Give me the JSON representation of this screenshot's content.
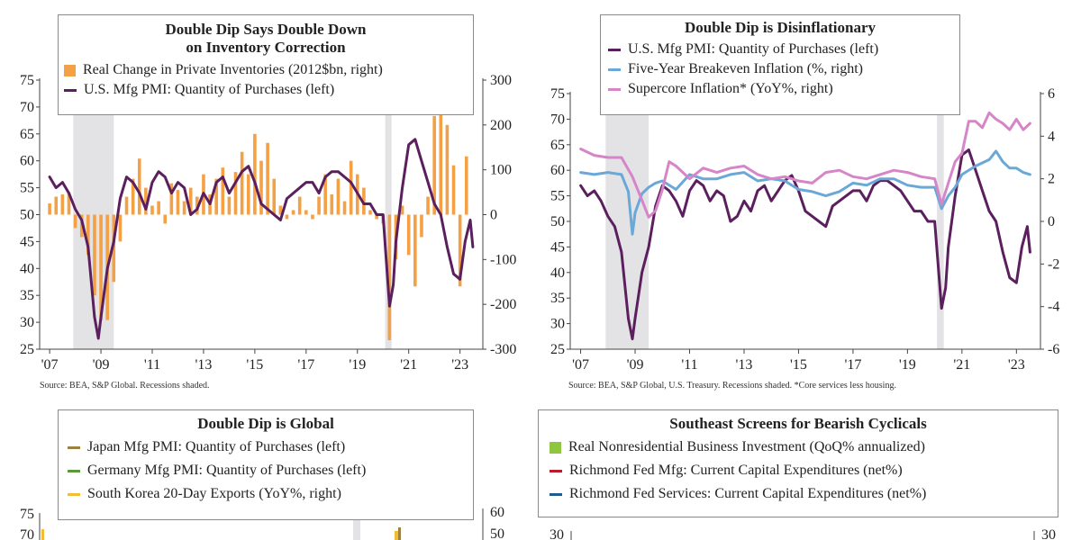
{
  "colors": {
    "purple": "#5b1f5e",
    "orange": "#f4a044",
    "blue": "#6aa8d8",
    "pink": "#d685c8",
    "tan": "#9c8240",
    "green_line": "#5a9a3a",
    "gold": "#f2bd34",
    "lime": "#8fc63f",
    "red": "#b51e2c",
    "navy": "#1f5b8e",
    "recession": "#e3e3e6",
    "axis": "#444444"
  },
  "chart_data": [
    {
      "id": "chart1",
      "type": "bar+line",
      "title_line1": "Double Dip Says Double Down",
      "title_line2": "on Inventory Correction",
      "source": "Source: BEA, S&P Global. Recessions shaded.",
      "x_ticks": [
        "'07",
        "'09",
        "'11",
        "'13",
        "'15",
        "'17",
        "'19",
        "'21",
        "'23"
      ],
      "x_tick_years": [
        2007,
        2009,
        2011,
        2013,
        2015,
        2017,
        2019,
        2021,
        2023
      ],
      "xlim": [
        2006.75,
        2023.75
      ],
      "recessions": [
        [
          2007.917,
          2009.5
        ],
        [
          2020.083,
          2020.333
        ]
      ],
      "left_axis": {
        "lim": [
          25,
          75
        ],
        "ticks": [
          25,
          30,
          35,
          40,
          45,
          50,
          55,
          60,
          65,
          70,
          75
        ]
      },
      "right_axis": {
        "lim": [
          -300,
          300
        ],
        "ticks": [
          -300,
          -200,
          -100,
          0,
          100,
          200,
          300
        ]
      },
      "series": [
        {
          "name": "Real Change in Private Inventories (2012$bn, right)",
          "kind": "bar",
          "axis": "right",
          "color_key": "orange",
          "x": [
            2007.0,
            2007.25,
            2007.5,
            2007.75,
            2008.0,
            2008.25,
            2008.5,
            2008.75,
            2009.0,
            2009.25,
            2009.5,
            2009.75,
            2010.0,
            2010.25,
            2010.5,
            2010.75,
            2011.0,
            2011.25,
            2011.5,
            2011.75,
            2012.0,
            2012.25,
            2012.5,
            2012.75,
            2013.0,
            2013.25,
            2013.5,
            2013.75,
            2014.0,
            2014.25,
            2014.5,
            2014.75,
            2015.0,
            2015.25,
            2015.5,
            2015.75,
            2016.0,
            2016.25,
            2016.5,
            2016.75,
            2017.0,
            2017.25,
            2017.5,
            2017.75,
            2018.0,
            2018.25,
            2018.5,
            2018.75,
            2019.0,
            2019.25,
            2019.5,
            2019.75,
            2020.0,
            2020.25,
            2020.5,
            2020.75,
            2021.0,
            2021.25,
            2021.5,
            2021.75,
            2022.0,
            2022.25,
            2022.5,
            2022.75,
            2023.0,
            2023.25
          ],
          "values": [
            25,
            40,
            45,
            50,
            -30,
            -50,
            -90,
            -180,
            -235,
            -235,
            -150,
            -60,
            40,
            80,
            125,
            60,
            20,
            30,
            -20,
            70,
            55,
            30,
            60,
            40,
            90,
            45,
            80,
            105,
            40,
            95,
            140,
            90,
            180,
            120,
            160,
            80,
            20,
            -10,
            10,
            40,
            10,
            -10,
            40,
            90,
            45,
            80,
            30,
            120,
            90,
            60,
            10,
            -10,
            -20,
            -280,
            -100,
            20,
            -90,
            -160,
            -50,
            40,
            220,
            240,
            200,
            110,
            -160,
            130
          ]
        },
        {
          "name": "U.S. Mfg PMI: Quantity of Purchases (left)",
          "kind": "line",
          "axis": "left",
          "color_key": "purple",
          "x": [
            2007.0,
            2007.25,
            2007.5,
            2007.75,
            2008.0,
            2008.25,
            2008.5,
            2008.75,
            2008.9,
            2009.0,
            2009.25,
            2009.5,
            2009.75,
            2010.0,
            2010.25,
            2010.5,
            2010.75,
            2011.0,
            2011.25,
            2011.5,
            2011.75,
            2012.0,
            2012.25,
            2012.5,
            2012.75,
            2013.0,
            2013.25,
            2013.5,
            2013.75,
            2014.0,
            2014.25,
            2014.5,
            2014.75,
            2015.0,
            2015.25,
            2015.5,
            2015.75,
            2016.0,
            2016.25,
            2016.5,
            2016.75,
            2017.0,
            2017.25,
            2017.5,
            2017.75,
            2018.0,
            2018.25,
            2018.5,
            2018.75,
            2019.0,
            2019.25,
            2019.5,
            2019.75,
            2020.0,
            2020.25,
            2020.4,
            2020.5,
            2020.75,
            2021.0,
            2021.25,
            2021.5,
            2021.75,
            2022.0,
            2022.25,
            2022.5,
            2022.75,
            2023.0,
            2023.2,
            2023.4,
            2023.5
          ],
          "values": [
            57,
            55,
            56,
            54,
            51,
            49,
            44,
            31,
            27,
            31,
            40,
            45,
            53,
            57,
            56,
            54,
            51,
            56,
            58,
            57,
            54,
            56,
            55,
            50,
            51,
            54,
            52,
            56,
            57,
            54,
            56,
            58,
            59,
            56,
            52,
            51,
            50,
            49,
            53,
            54,
            55,
            56,
            56,
            54,
            57,
            58,
            58,
            57,
            56,
            54,
            52,
            52,
            50,
            50,
            33,
            37,
            45,
            55,
            63,
            64,
            60,
            56,
            52,
            50,
            44,
            39,
            38,
            45,
            49,
            44
          ]
        }
      ]
    },
    {
      "id": "chart2",
      "type": "line",
      "title": "Double Dip is Disinflationary",
      "source": "Source: BEA, S&P Global, U.S. Treasury. Recessions shaded. *Core services less housing.",
      "x_ticks": [
        "'07",
        "'09",
        "'11",
        "'13",
        "'15",
        "'17",
        "'19",
        "'21",
        "'23"
      ],
      "x_tick_years": [
        2007,
        2009,
        2011,
        2013,
        2015,
        2017,
        2019,
        2021,
        2023
      ],
      "xlim": [
        2006.75,
        2023.75
      ],
      "recessions": [
        [
          2007.917,
          2009.5
        ],
        [
          2020.083,
          2020.333
        ]
      ],
      "left_axis": {
        "lim": [
          25,
          75
        ],
        "ticks": [
          25,
          30,
          35,
          40,
          45,
          50,
          55,
          60,
          65,
          70,
          75
        ]
      },
      "right_axis": {
        "lim": [
          -6,
          6
        ],
        "ticks": [
          -6,
          -4,
          -2,
          0,
          2,
          4,
          6
        ]
      },
      "series": [
        {
          "name": "U.S. Mfg PMI: Quantity of Purchases (left)",
          "kind": "line",
          "axis": "left",
          "color_key": "purple",
          "x": [
            2007.0,
            2007.25,
            2007.5,
            2007.75,
            2008.0,
            2008.25,
            2008.5,
            2008.75,
            2008.9,
            2009.0,
            2009.25,
            2009.5,
            2009.75,
            2010.0,
            2010.25,
            2010.5,
            2010.75,
            2011.0,
            2011.25,
            2011.5,
            2011.75,
            2012.0,
            2012.25,
            2012.5,
            2012.75,
            2013.0,
            2013.25,
            2013.5,
            2013.75,
            2014.0,
            2014.25,
            2014.5,
            2014.75,
            2015.0,
            2015.25,
            2015.5,
            2015.75,
            2016.0,
            2016.25,
            2016.5,
            2016.75,
            2017.0,
            2017.25,
            2017.5,
            2017.75,
            2018.0,
            2018.25,
            2018.5,
            2018.75,
            2019.0,
            2019.25,
            2019.5,
            2019.75,
            2020.0,
            2020.25,
            2020.4,
            2020.5,
            2020.75,
            2021.0,
            2021.25,
            2021.5,
            2021.75,
            2022.0,
            2022.25,
            2022.5,
            2022.75,
            2023.0,
            2023.2,
            2023.4,
            2023.5
          ],
          "values": [
            57,
            55,
            56,
            54,
            51,
            49,
            44,
            31,
            27,
            31,
            40,
            45,
            53,
            57,
            56,
            54,
            51,
            56,
            58,
            57,
            54,
            56,
            55,
            50,
            51,
            54,
            52,
            56,
            57,
            54,
            56,
            58,
            59,
            56,
            52,
            51,
            50,
            49,
            53,
            54,
            55,
            56,
            56,
            54,
            57,
            58,
            58,
            57,
            56,
            54,
            52,
            52,
            50,
            50,
            33,
            37,
            45,
            55,
            63,
            64,
            60,
            56,
            52,
            50,
            44,
            39,
            38,
            45,
            49,
            44
          ]
        },
        {
          "name": "Five-Year Breakeven Inflation (%, right)",
          "kind": "line",
          "axis": "right",
          "color_key": "blue",
          "x": [
            2007.0,
            2007.5,
            2008.0,
            2008.5,
            2008.75,
            2008.9,
            2009.0,
            2009.25,
            2009.5,
            2009.75,
            2010.0,
            2010.5,
            2011.0,
            2011.5,
            2012.0,
            2012.5,
            2013.0,
            2013.5,
            2014.0,
            2014.5,
            2015.0,
            2015.5,
            2016.0,
            2016.5,
            2017.0,
            2017.5,
            2018.0,
            2018.5,
            2019.0,
            2019.5,
            2020.0,
            2020.25,
            2020.5,
            2020.75,
            2021.0,
            2021.5,
            2022.0,
            2022.25,
            2022.5,
            2022.75,
            2023.0,
            2023.25,
            2023.5
          ],
          "values": [
            2.3,
            2.2,
            2.3,
            2.2,
            1.4,
            -0.6,
            0.4,
            1.3,
            1.6,
            1.8,
            1.9,
            1.5,
            2.2,
            2.0,
            2.0,
            2.2,
            2.3,
            1.9,
            2.0,
            1.9,
            1.5,
            1.4,
            1.2,
            1.4,
            1.8,
            1.7,
            2.0,
            2.0,
            1.7,
            1.6,
            1.6,
            0.6,
            1.2,
            1.6,
            2.2,
            2.6,
            2.9,
            3.3,
            2.8,
            2.5,
            2.5,
            2.3,
            2.2
          ]
        },
        {
          "name": "Supercore Inflation* (YoY%, right)",
          "kind": "line",
          "axis": "right",
          "color_key": "pink",
          "x": [
            2007.0,
            2007.5,
            2008.0,
            2008.5,
            2008.9,
            2009.25,
            2009.5,
            2009.75,
            2010.0,
            2010.25,
            2010.5,
            2011.0,
            2011.5,
            2012.0,
            2012.5,
            2013.0,
            2013.5,
            2014.0,
            2014.5,
            2015.0,
            2015.5,
            2016.0,
            2016.5,
            2017.0,
            2017.5,
            2018.0,
            2018.5,
            2019.0,
            2019.5,
            2020.0,
            2020.25,
            2020.5,
            2020.75,
            2021.0,
            2021.25,
            2021.5,
            2021.75,
            2022.0,
            2022.25,
            2022.5,
            2022.75,
            2023.0,
            2023.25,
            2023.5
          ],
          "values": [
            3.4,
            3.1,
            3.0,
            3.0,
            2.1,
            1.0,
            0.2,
            0.5,
            1.5,
            2.8,
            2.6,
            2.0,
            2.5,
            2.3,
            2.5,
            2.6,
            2.2,
            2.0,
            2.1,
            1.9,
            1.8,
            2.3,
            2.4,
            2.1,
            2.0,
            2.2,
            2.4,
            2.3,
            2.1,
            2.0,
            0.8,
            1.8,
            2.8,
            3.2,
            4.7,
            4.7,
            4.4,
            5.1,
            4.8,
            4.6,
            4.3,
            4.8,
            4.3,
            4.6
          ]
        }
      ]
    },
    {
      "id": "chart3",
      "type": "line",
      "title": "Double Dip is Global",
      "left_axis": {
        "ticks_visible": [
          75,
          70
        ]
      },
      "right_axis": {
        "ticks_visible": [
          60,
          50
        ]
      },
      "series": [
        {
          "name": "Japan Mfg PMI: Quantity of Purchases (left)",
          "color_key": "tan"
        },
        {
          "name": "Germany Mfg PMI: Quantity of Purchases (left)",
          "color_key": "green_line"
        },
        {
          "name": "South Korea 20-Day Exports (YoY%, right)",
          "color_key": "gold"
        }
      ]
    },
    {
      "id": "chart4",
      "type": "bar+line",
      "title": "Southeast Screens for Bearish Cyclicals",
      "left_axis": {
        "ticks_visible": [
          30
        ]
      },
      "right_axis": {
        "ticks_visible": [
          30
        ]
      },
      "series": [
        {
          "name": "Real Nonresidential Business Investment (QoQ% annualized)",
          "color_key": "lime",
          "kind": "bar"
        },
        {
          "name": "Richmond Fed Mfg: Current Capital Expenditures (net%)",
          "color_key": "red",
          "kind": "line"
        },
        {
          "name": "Richmond Fed Services: Current Capital Expenditures (net%)",
          "color_key": "navy",
          "kind": "line"
        }
      ]
    }
  ]
}
